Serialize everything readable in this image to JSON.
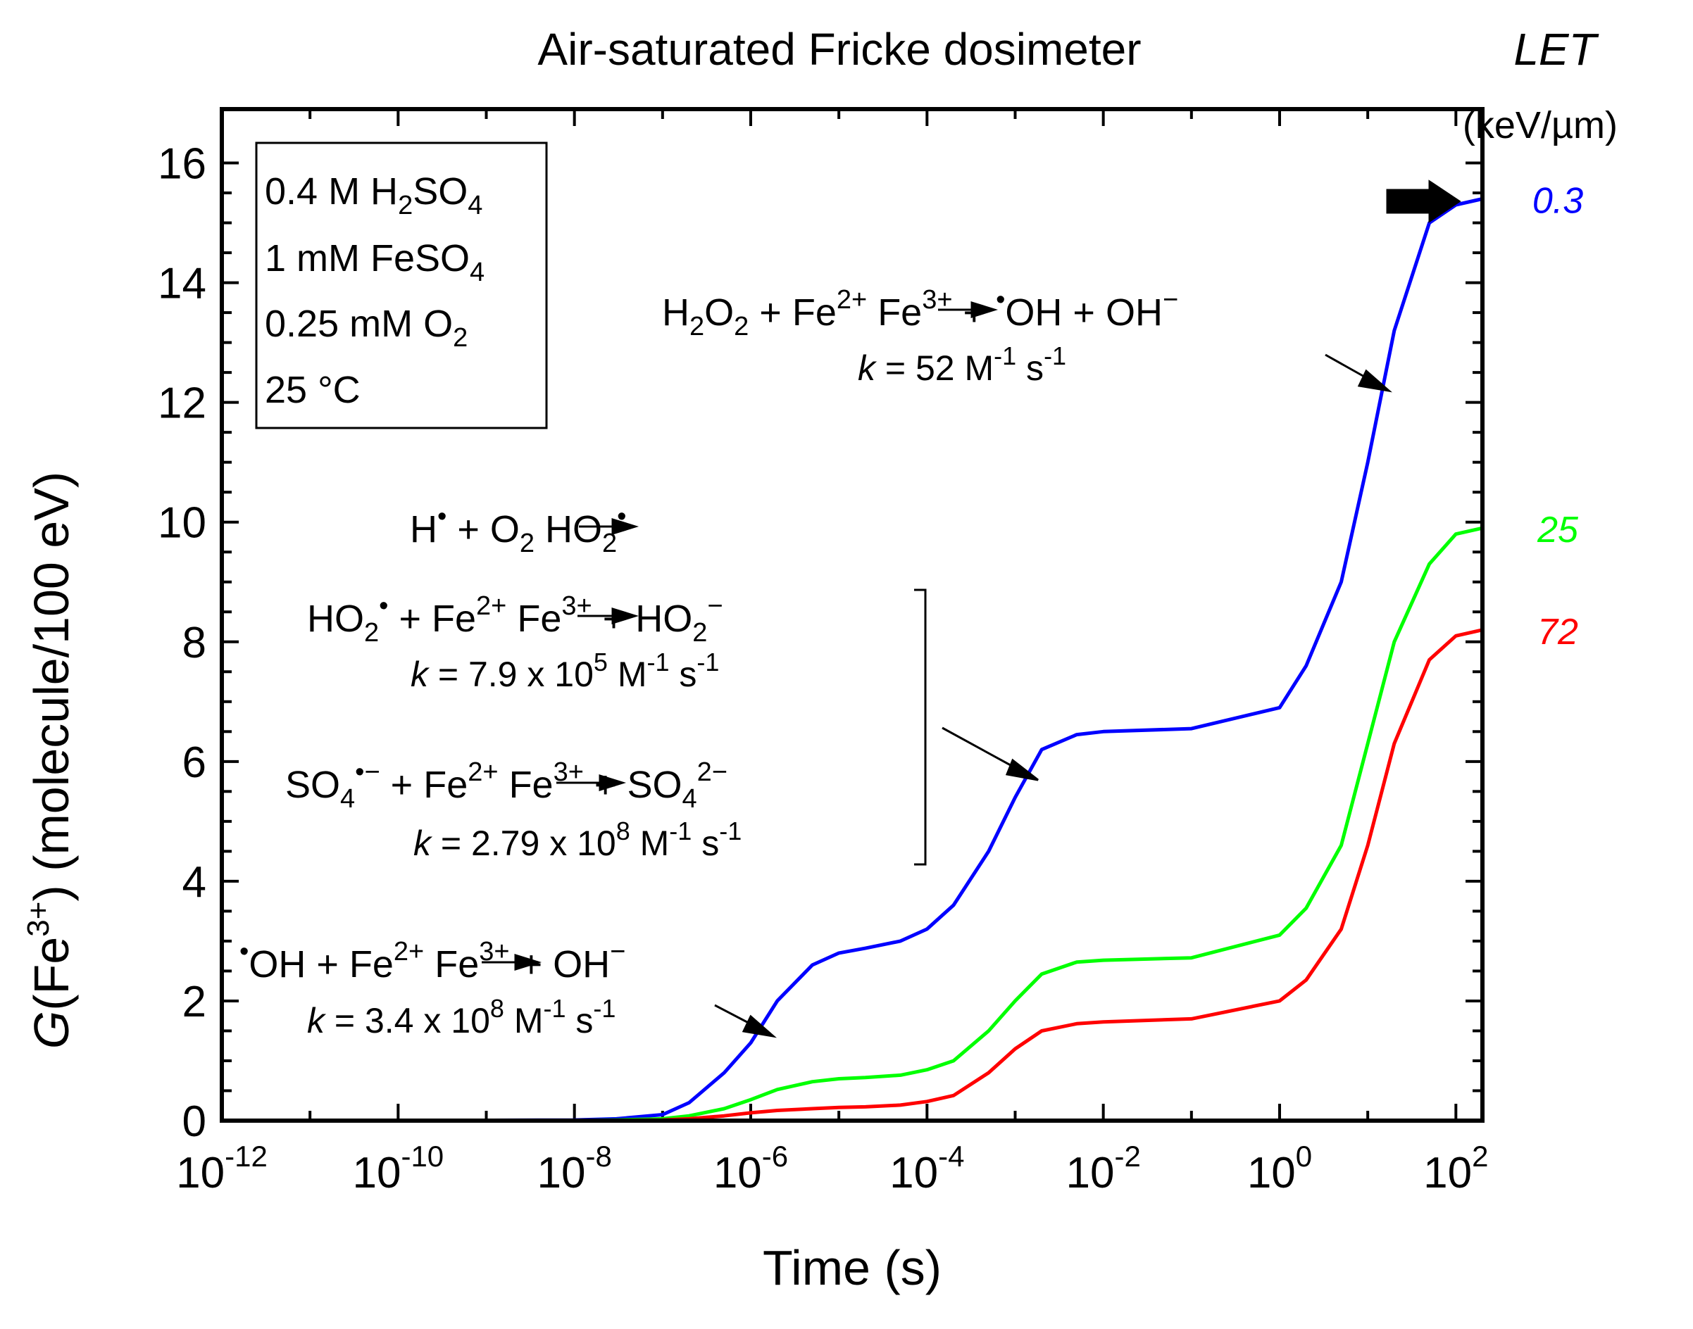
{
  "chart_data": {
    "type": "line",
    "title": "Air-saturated Fricke dosimeter",
    "xlabel": "Time (s)",
    "ylabel": "G(Fe3+) (molecule/100 eV)",
    "xscale": "log",
    "xlim": [
      1e-12,
      200
    ],
    "ylim": [
      0,
      16.9
    ],
    "x_ticks": [
      {
        "base": "10",
        "exp": "-12",
        "value": 1e-12
      },
      {
        "base": "10",
        "exp": "-10",
        "value": 1e-10
      },
      {
        "base": "10",
        "exp": "-8",
        "value": 1e-08
      },
      {
        "base": "10",
        "exp": "-6",
        "value": 1e-06
      },
      {
        "base": "10",
        "exp": "-4",
        "value": 0.0001
      },
      {
        "base": "10",
        "exp": "-2",
        "value": 0.01
      },
      {
        "base": "10",
        "exp": "0",
        "value": 1
      },
      {
        "base": "10",
        "exp": "2",
        "value": 100
      }
    ],
    "y_ticks": [
      0,
      2,
      4,
      6,
      8,
      10,
      12,
      14,
      16
    ],
    "right_axis": {
      "title": "LET",
      "unit": "(keV/µm)"
    },
    "x": [
      1e-12,
      1e-10,
      1e-08,
      3e-08,
      1e-07,
      2e-07,
      5e-07,
      1e-06,
      2e-06,
      5e-06,
      1e-05,
      2e-05,
      5e-05,
      0.0001,
      0.0002,
      0.0005,
      0.001,
      0.002,
      0.005,
      0.01,
      0.1,
      1,
      2,
      5,
      10,
      20,
      50,
      100,
      200
    ],
    "series": [
      {
        "name": "0.3",
        "color": "#0000ff",
        "values": [
          0,
          0,
          0.01,
          0.03,
          0.1,
          0.3,
          0.8,
          1.3,
          2.0,
          2.6,
          2.8,
          2.88,
          3.0,
          3.2,
          3.6,
          4.5,
          5.4,
          6.2,
          6.45,
          6.5,
          6.55,
          6.9,
          7.6,
          9.0,
          11.0,
          13.2,
          15.0,
          15.3,
          15.4
        ]
      },
      {
        "name": "25",
        "color": "#00ff00",
        "values": [
          0,
          0,
          0.005,
          0.01,
          0.03,
          0.08,
          0.2,
          0.35,
          0.52,
          0.65,
          0.7,
          0.72,
          0.76,
          0.85,
          1.0,
          1.5,
          2.0,
          2.45,
          2.65,
          2.68,
          2.72,
          3.1,
          3.55,
          4.6,
          6.3,
          8.0,
          9.3,
          9.8,
          9.9
        ]
      },
      {
        "name": "72",
        "color": "#ff0000",
        "values": [
          0,
          0,
          0.002,
          0.005,
          0.01,
          0.03,
          0.08,
          0.13,
          0.17,
          0.2,
          0.22,
          0.23,
          0.26,
          0.32,
          0.42,
          0.8,
          1.2,
          1.5,
          1.62,
          1.65,
          1.7,
          2.0,
          2.35,
          3.2,
          4.6,
          6.3,
          7.7,
          8.1,
          8.2
        ]
      }
    ],
    "legend_box": [
      "0.4 M H2SO4",
      "1 mM FeSO4",
      "0.25 mM O2",
      "25 °C"
    ],
    "annotations": {
      "r1": "H2O2 + Fe2+ → Fe3+ + •OH + OH−",
      "k1": "k = 52 M-1 s-1",
      "r2": "H• + O2 → HO2•",
      "r3": "HO2• + Fe2+ → Fe3+ + HO2−",
      "k3": "k = 7.9 x 105 M-1 s-1",
      "r4": "SO4•− + Fe2+ → Fe3+ + SO42−",
      "k4": "k = 2.79 x 108 M-1 s-1",
      "r5": "•OH + Fe2+ → Fe3+ + OH−",
      "k5": "k = 3.4 x 108 M-1 s-1"
    },
    "colors": {
      "blue": "#0000ff",
      "green": "#00ff00",
      "red": "#ff0000"
    }
  }
}
